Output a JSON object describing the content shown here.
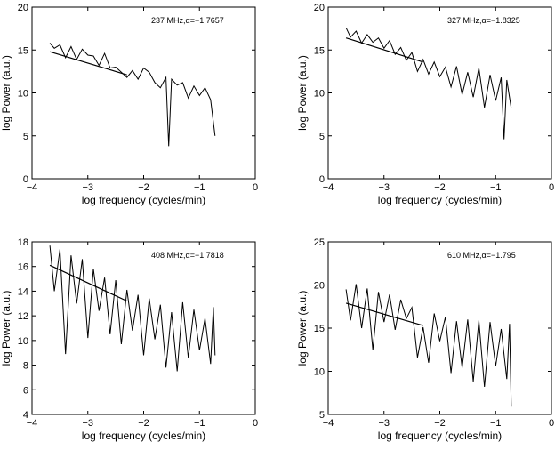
{
  "figure": {
    "description_free": true
  },
  "chart_data": [
    {
      "type": "line",
      "annotation": "237 MHz,α=−1.7657",
      "xlabel": "log frequency (cycles/min)",
      "ylabel": "log Power (a.u.)",
      "xlim": [
        -4,
        0
      ],
      "ylim": [
        0,
        20
      ],
      "xticks": [
        "−4",
        "−3",
        "−2",
        "−1",
        "0"
      ],
      "yticks": [
        "0",
        "5",
        "10",
        "15",
        "20"
      ],
      "xtick_values": [
        -4,
        -3,
        -2,
        -1,
        0
      ],
      "ytick_values": [
        0,
        5,
        10,
        15,
        20
      ],
      "grid": false,
      "series": [
        {
          "values_x": [
            -3.68,
            -3.6,
            -3.5,
            -3.4,
            -3.3,
            -3.2,
            -3.1,
            -3.0,
            -2.9,
            -2.8,
            -2.7,
            -2.6,
            -2.5,
            -2.4,
            -2.3,
            -2.2,
            -2.1,
            -2.0,
            -1.9,
            -1.8,
            -1.7,
            -1.6,
            -1.55,
            -1.5,
            -1.4,
            -1.3,
            -1.2,
            -1.1,
            -1.0,
            -0.9,
            -0.8,
            -0.72
          ],
          "values_y": [
            15.8,
            15.2,
            15.6,
            14.1,
            15.4,
            13.9,
            15.1,
            14.4,
            14.3,
            13.2,
            14.6,
            12.9,
            13.0,
            12.4,
            11.8,
            12.6,
            11.6,
            12.9,
            12.4,
            11.2,
            10.6,
            11.8,
            3.8,
            11.6,
            10.9,
            11.2,
            9.4,
            10.8,
            9.7,
            10.6,
            9.2,
            5.0
          ]
        },
        {
          "values_x": [
            -3.68,
            -2.3
          ],
          "values_y": [
            14.8,
            12.1
          ]
        }
      ]
    },
    {
      "type": "line",
      "annotation": "327 MHz,α=−1.8325",
      "xlabel": "log frequency (cycles/min)",
      "ylabel": "log Power (a.u.)",
      "xlim": [
        -4,
        0
      ],
      "ylim": [
        0,
        20
      ],
      "xticks": [
        "−4",
        "−3",
        "−2",
        "−1",
        "0"
      ],
      "yticks": [
        "0",
        "5",
        "10",
        "15",
        "20"
      ],
      "xtick_values": [
        -4,
        -3,
        -2,
        -1,
        0
      ],
      "ytick_values": [
        0,
        5,
        10,
        15,
        20
      ],
      "grid": false,
      "series": [
        {
          "values_x": [
            -3.68,
            -3.6,
            -3.5,
            -3.4,
            -3.3,
            -3.2,
            -3.1,
            -3.0,
            -2.9,
            -2.8,
            -2.7,
            -2.6,
            -2.5,
            -2.4,
            -2.3,
            -2.2,
            -2.1,
            -2.0,
            -1.9,
            -1.8,
            -1.7,
            -1.6,
            -1.5,
            -1.4,
            -1.3,
            -1.2,
            -1.1,
            -1.0,
            -0.9,
            -0.85,
            -0.8,
            -0.72
          ],
          "values_y": [
            17.6,
            16.5,
            17.2,
            15.8,
            16.8,
            15.9,
            16.4,
            15.2,
            16.1,
            14.5,
            15.3,
            13.8,
            14.7,
            12.5,
            13.9,
            12.2,
            13.6,
            11.9,
            13.0,
            10.7,
            13.1,
            9.8,
            12.4,
            9.5,
            12.9,
            8.3,
            12.1,
            9.1,
            11.8,
            4.6,
            11.5,
            8.2
          ]
        },
        {
          "values_x": [
            -3.68,
            -2.3
          ],
          "values_y": [
            16.4,
            13.6
          ]
        }
      ]
    },
    {
      "type": "line",
      "annotation": "408 MHz,α=−1.7818",
      "xlabel": "log frequency (cycles/min)",
      "ylabel": "log Power (a.u.)",
      "xlim": [
        -4,
        0
      ],
      "ylim": [
        4,
        18
      ],
      "xticks": [
        "−4",
        "−3",
        "−2",
        "−1",
        "0"
      ],
      "yticks": [
        "4",
        "6",
        "8",
        "10",
        "12",
        "14",
        "16",
        "18"
      ],
      "xtick_values": [
        -4,
        -3,
        -2,
        -1,
        0
      ],
      "ytick_values": [
        4,
        6,
        8,
        10,
        12,
        14,
        16,
        18
      ],
      "grid": false,
      "series": [
        {
          "values_x": [
            -3.68,
            -3.6,
            -3.5,
            -3.4,
            -3.3,
            -3.2,
            -3.1,
            -3.0,
            -2.9,
            -2.8,
            -2.7,
            -2.6,
            -2.5,
            -2.4,
            -2.3,
            -2.2,
            -2.1,
            -2.0,
            -1.9,
            -1.8,
            -1.7,
            -1.6,
            -1.5,
            -1.4,
            -1.3,
            -1.2,
            -1.1,
            -1.0,
            -0.9,
            -0.8,
            -0.75,
            -0.72
          ],
          "values_y": [
            17.7,
            14.0,
            17.4,
            8.9,
            16.9,
            13.0,
            16.6,
            10.2,
            15.8,
            12.4,
            15.1,
            10.5,
            14.9,
            9.7,
            14.1,
            10.8,
            13.7,
            8.8,
            13.4,
            10.1,
            12.9,
            7.8,
            12.3,
            7.5,
            13.1,
            8.6,
            12.5,
            9.2,
            11.8,
            8.1,
            12.7,
            8.8
          ]
        },
        {
          "values_x": [
            -3.68,
            -2.3
          ],
          "values_y": [
            16.1,
            13.2
          ]
        }
      ]
    },
    {
      "type": "line",
      "annotation": "610 MHz,α=−1.795",
      "xlabel": "log frequency (cycles/min)",
      "ylabel": "log Power (a.u.)",
      "xlim": [
        -4,
        0
      ],
      "ylim": [
        5,
        25
      ],
      "xticks": [
        "−4",
        "−3",
        "−2",
        "−1",
        "0"
      ],
      "yticks": [
        "5",
        "10",
        "15",
        "20",
        "25"
      ],
      "xtick_values": [
        -4,
        -3,
        -2,
        -1,
        0
      ],
      "ytick_values": [
        5,
        10,
        15,
        20,
        25
      ],
      "grid": false,
      "series": [
        {
          "values_x": [
            -3.68,
            -3.6,
            -3.5,
            -3.4,
            -3.3,
            -3.2,
            -3.1,
            -3.0,
            -2.9,
            -2.8,
            -2.7,
            -2.6,
            -2.5,
            -2.4,
            -2.3,
            -2.2,
            -2.1,
            -2.0,
            -1.9,
            -1.8,
            -1.7,
            -1.6,
            -1.5,
            -1.4,
            -1.3,
            -1.2,
            -1.1,
            -1.0,
            -0.9,
            -0.8,
            -0.75,
            -0.72
          ],
          "values_y": [
            19.5,
            15.9,
            20.1,
            15.0,
            19.6,
            12.5,
            19.2,
            15.7,
            18.9,
            14.8,
            18.3,
            16.1,
            17.4,
            11.6,
            15.1,
            11.0,
            16.7,
            13.5,
            16.3,
            9.8,
            15.8,
            10.4,
            16.0,
            8.8,
            15.9,
            8.2,
            15.7,
            10.6,
            14.9,
            9.1,
            15.5,
            5.9
          ]
        },
        {
          "values_x": [
            -3.68,
            -2.3
          ],
          "values_y": [
            17.9,
            15.3
          ]
        }
      ]
    }
  ]
}
